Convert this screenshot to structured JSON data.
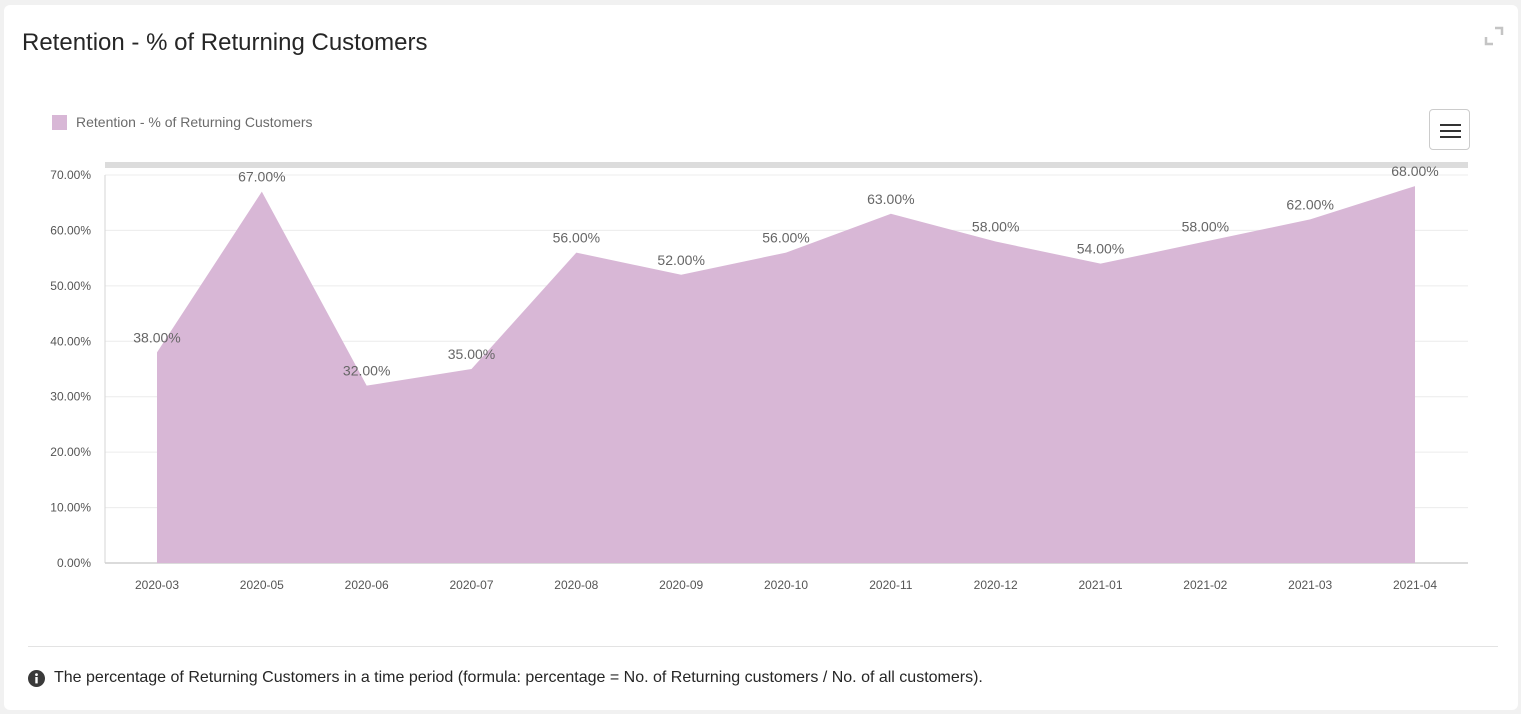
{
  "card": {
    "title": "Retention - % of Returning Customers",
    "footnote": "The percentage of Returning Customers in a time period (formula: percentage = No. of Returning customers / No. of all customers)."
  },
  "icons": {
    "expand": "expand-icon",
    "menu": "hamburger-menu-icon",
    "info": "info-icon"
  },
  "colors": {
    "series": "#d8b7d6",
    "axis_text": "#555555",
    "label_text": "#666666",
    "grid": "#ececec"
  },
  "chart_data": {
    "type": "area",
    "title": "",
    "xlabel": "",
    "ylabel": "",
    "categories": [
      "2020-03",
      "2020-05",
      "2020-06",
      "2020-07",
      "2020-08",
      "2020-09",
      "2020-10",
      "2020-11",
      "2020-12",
      "2021-01",
      "2021-02",
      "2021-03",
      "2021-04"
    ],
    "series": [
      {
        "name": "Retention - % of Returning Customers",
        "values": [
          38,
          67,
          32,
          35,
          56,
          52,
          56,
          63,
          58,
          54,
          58,
          62,
          68
        ],
        "data_labels": [
          "38.00%",
          "67.00%",
          "32.00%",
          "35.00%",
          "56.00%",
          "52.00%",
          "56.00%",
          "63.00%",
          "58.00%",
          "54.00%",
          "58.00%",
          "62.00%",
          "68.00%"
        ]
      }
    ],
    "ylim": [
      0,
      70
    ],
    "yticks": [
      0,
      10,
      20,
      30,
      40,
      50,
      60,
      70
    ],
    "ytick_labels": [
      "0.00%",
      "10.00%",
      "20.00%",
      "30.00%",
      "40.00%",
      "50.00%",
      "60.00%",
      "70.00%"
    ],
    "grid": true,
    "legend_position": "top-left"
  }
}
